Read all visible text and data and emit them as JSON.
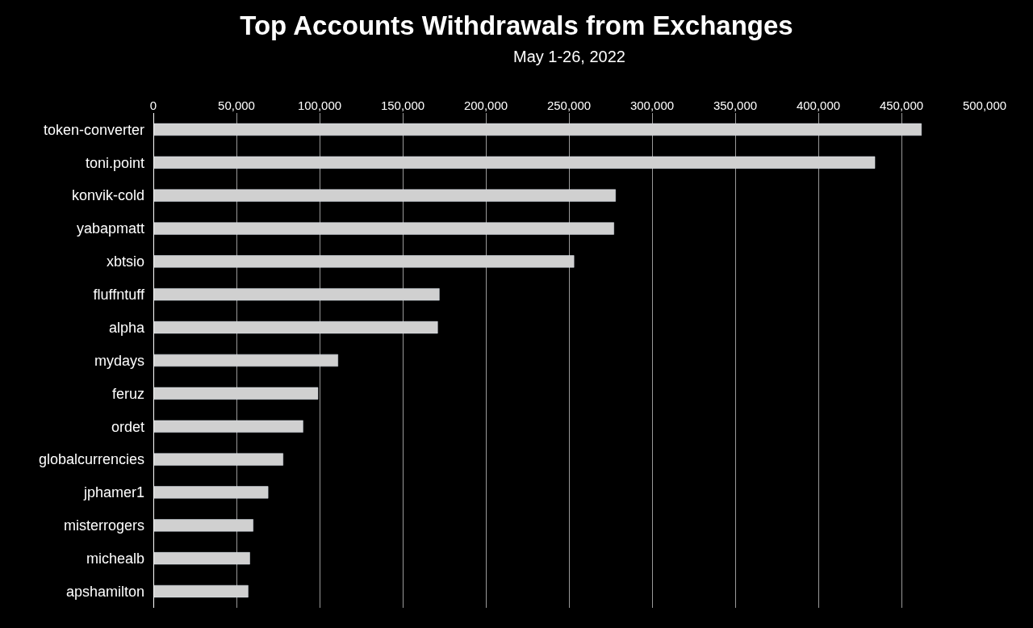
{
  "chart_data": {
    "type": "bar",
    "orientation": "horizontal",
    "title": "Top Accounts Withdrawals from Exchanges",
    "subtitle": "May 1-26, 2022",
    "categories": [
      "token-converter",
      "toni.point",
      "konvik-cold",
      "yabapmatt",
      "xbtsio",
      "fluffntuff",
      "alpha",
      "mydays",
      "feruz",
      "ordet",
      "globalcurrencies",
      "jphamer1",
      "misterrogers",
      "michealb",
      "apshamilton"
    ],
    "values": [
      462000,
      434000,
      278000,
      277000,
      253000,
      172000,
      171000,
      111000,
      99000,
      90000,
      78000,
      69000,
      60000,
      58000,
      57000
    ],
    "color": "#d0d0d0",
    "xlim": [
      0,
      500000
    ],
    "xticks": [
      {
        "value": 0,
        "label": "0"
      },
      {
        "value": 50000,
        "label": "50,000"
      },
      {
        "value": 100000,
        "label": "100,000"
      },
      {
        "value": 150000,
        "label": "150,000"
      },
      {
        "value": 200000,
        "label": "200,000"
      },
      {
        "value": 250000,
        "label": "250,000"
      },
      {
        "value": 300000,
        "label": "300,000"
      },
      {
        "value": 350000,
        "label": "350,000"
      },
      {
        "value": 400000,
        "label": "400,000"
      },
      {
        "value": 450000,
        "label": "450,000"
      },
      {
        "value": 500000,
        "label": "500,000"
      }
    ],
    "grid": "x"
  }
}
